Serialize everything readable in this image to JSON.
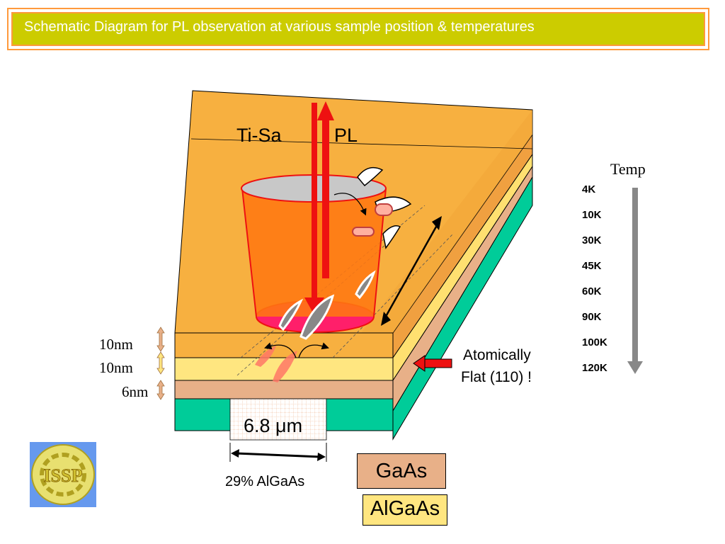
{
  "title": "Schematic Diagram for PL observation at  various sample position & temperatures",
  "labels": {
    "laser": "Ti-Sa",
    "pl": "PL",
    "thickness": [
      "10nm",
      "10nm",
      "6nm"
    ],
    "width": "6.8 μm",
    "substrate_label": "29% AlGaAs",
    "atomically_line1": "Atomically",
    "atomically_line2": "Flat (110) !"
  },
  "temperature": {
    "heading": "Temp",
    "values": [
      "4K",
      "10K",
      "30K",
      "45K",
      "60K",
      "90K",
      "100K",
      "120K"
    ]
  },
  "legend": [
    {
      "name": "GaAs",
      "color": "#e8b088"
    },
    {
      "name": "AlGaAs",
      "color": "#ffe680"
    }
  ],
  "logo_text": "ISSP",
  "colors": {
    "title_bg": "#cccc00",
    "title_border": "#ff9a3c",
    "top_face": "#f7b040",
    "gaas_layer": "#e8b088",
    "algaas_layer": "#ffe680",
    "substrate": "#00cc99",
    "laser_red": "#ee1111",
    "objective": "#ff7711"
  }
}
